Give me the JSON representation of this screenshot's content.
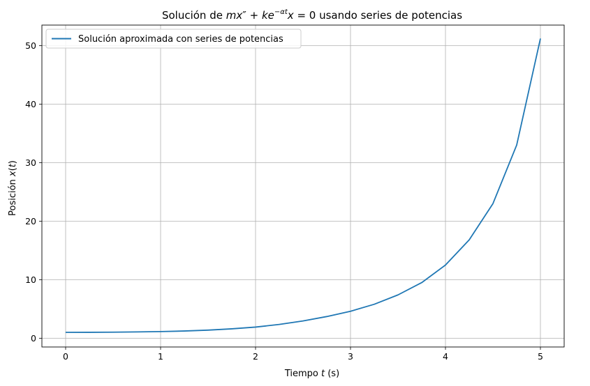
{
  "chart_data": {
    "type": "line",
    "title": {
      "prefix": "Solución de ",
      "math_m": "m",
      "math_x": "x",
      "math_prime": "″",
      "math_plus": " + ",
      "math_k": "k",
      "math_e": "e",
      "math_exp": "−αt",
      "math_x2": "x",
      "math_eq": " = 0",
      "suffix": " usando series de potencias"
    },
    "xlabel": {
      "prefix": "Tiempo ",
      "var": "t",
      "suffix": " (s)"
    },
    "ylabel": {
      "prefix": "Posición ",
      "var": "x",
      "open": "(",
      "var2": "t",
      "close": ")"
    },
    "xlim": [
      -0.25,
      5.25
    ],
    "ylim": [
      -1.5,
      53.5
    ],
    "xticks": [
      0,
      1,
      2,
      3,
      4,
      5
    ],
    "yticks": [
      0,
      10,
      20,
      30,
      40,
      50
    ],
    "grid": true,
    "legend_position": "top-left",
    "series": [
      {
        "name": "Solución aproximada con series de potencias",
        "color": "#1f77b4",
        "x": [
          0,
          0.25,
          0.5,
          0.75,
          1.0,
          1.25,
          1.5,
          1.75,
          2.0,
          2.25,
          2.5,
          2.75,
          3.0,
          3.25,
          3.5,
          3.75,
          4.0,
          4.25,
          4.5,
          4.75,
          5.0
        ],
        "y": [
          1.0,
          1.01,
          1.03,
          1.07,
          1.13,
          1.23,
          1.38,
          1.6,
          1.9,
          2.35,
          2.95,
          3.7,
          4.6,
          5.8,
          7.4,
          9.5,
          12.5,
          16.8,
          23.0,
          33.0,
          51.2
        ]
      }
    ]
  }
}
